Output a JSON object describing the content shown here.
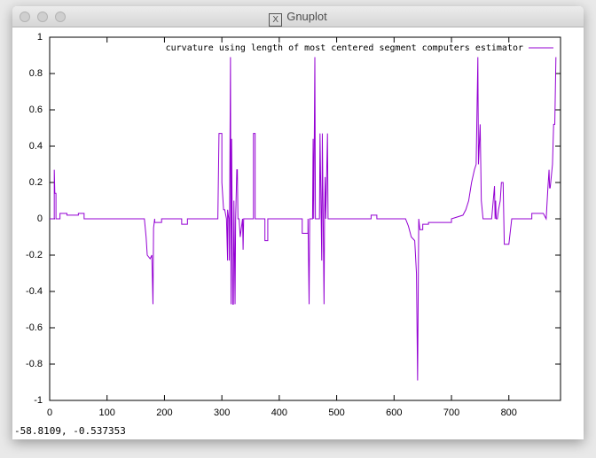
{
  "window": {
    "title": "Gnuplot"
  },
  "status": "-58.8109, -0.537353",
  "chart_data": {
    "type": "line",
    "x": [
      0,
      8,
      8,
      9,
      11,
      11,
      18,
      18,
      30,
      30,
      50,
      50,
      60,
      60,
      165,
      168,
      170,
      175,
      178,
      180,
      181,
      183,
      183,
      195,
      195,
      230,
      230,
      240,
      240,
      293,
      295,
      300,
      300,
      303,
      305,
      308,
      310,
      310,
      312,
      313,
      315,
      316,
      317,
      319,
      320,
      321,
      323,
      324,
      326,
      327,
      328,
      330,
      332,
      336,
      337,
      338,
      355,
      355,
      358,
      358,
      375,
      375,
      380,
      380,
      440,
      440,
      450,
      450,
      452,
      453,
      458,
      459,
      460,
      461,
      462,
      463,
      470,
      471,
      474,
      475,
      478,
      479,
      480,
      481,
      484,
      485,
      560,
      560,
      570,
      570,
      620,
      625,
      630,
      636,
      639,
      641,
      643,
      645,
      650,
      650,
      660,
      660,
      700,
      700,
      720,
      725,
      730,
      735,
      740,
      743,
      746,
      747,
      750,
      752,
      755,
      770,
      775,
      776,
      777,
      778,
      780,
      782,
      785,
      787,
      790,
      792,
      795,
      800,
      805,
      840,
      840,
      860,
      865,
      868,
      870,
      871,
      872,
      876,
      878,
      880,
      882
    ],
    "series": [
      {
        "name": "curvature using length of most centered segment computers estimator",
        "color": "#9400d3",
        "values": [
          0,
          0,
          0.27,
          0.14,
          0.14,
          0,
          0,
          0.03,
          0.03,
          0.02,
          0.02,
          0.03,
          0.03,
          0,
          0,
          -0.1,
          -0.2,
          -0.22,
          -0.2,
          -0.47,
          -0.05,
          0,
          -0.02,
          -0.02,
          0,
          0,
          -0.03,
          -0.03,
          0,
          0,
          0.47,
          0.47,
          0.2,
          0.05,
          0.05,
          0,
          -0.23,
          0.05,
          0,
          -0.23,
          0.89,
          -0.47,
          0.44,
          -0.47,
          -0.47,
          0.1,
          -0.47,
          0,
          0.27,
          0.27,
          0,
          0,
          -0.1,
          0,
          -0.17,
          0,
          0,
          0.47,
          0.47,
          0,
          0,
          -0.12,
          -0.12,
          0,
          0,
          -0.08,
          -0.08,
          0,
          -0.47,
          0,
          0,
          0.44,
          0,
          0.44,
          0.89,
          0,
          0,
          0.47,
          -0.23,
          0.47,
          -0.47,
          0.05,
          0.23,
          0,
          0.47,
          0,
          0,
          0.02,
          0.02,
          0,
          0,
          -0.04,
          -0.1,
          -0.12,
          -0.3,
          -0.89,
          0,
          -0.06,
          -0.06,
          -0.03,
          -0.03,
          -0.02,
          -0.02,
          0,
          0.02,
          0.05,
          0.1,
          0.2,
          0.27,
          0.3,
          0.89,
          0.3,
          0.52,
          0.1,
          0,
          0,
          0.18,
          0,
          0.1,
          0,
          0,
          0.05,
          0.1,
          0.2,
          0.2,
          -0.14,
          -0.14,
          -0.14,
          0,
          0,
          0.03,
          0.03,
          0,
          0.17,
          0.27,
          0.17,
          0.17,
          0.3,
          0.52,
          0.52,
          0.89
        ]
      }
    ],
    "xlim": [
      0,
      890
    ],
    "xticks": [
      0,
      100,
      200,
      300,
      400,
      500,
      600,
      700,
      800
    ],
    "ylim": [
      -1,
      1
    ],
    "yticks": [
      -1,
      -0.8,
      -0.6,
      -0.4,
      -0.2,
      0,
      0.2,
      0.4,
      0.6,
      0.8,
      1
    ],
    "grid": false,
    "legend": "top-right"
  }
}
